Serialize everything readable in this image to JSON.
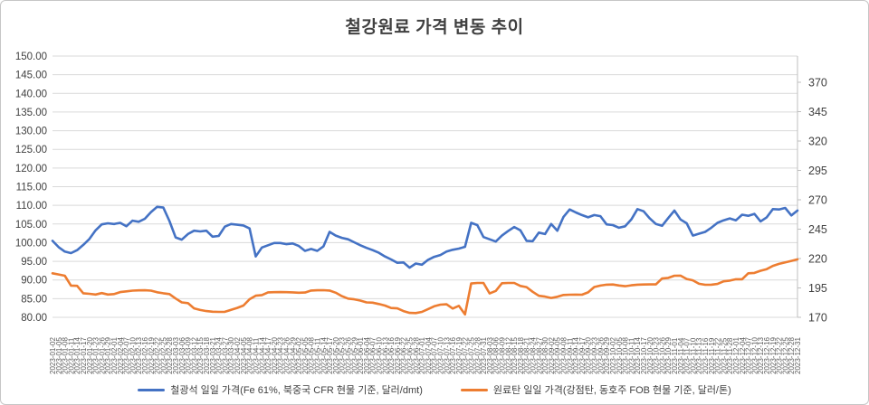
{
  "title": "철강원료 가격 변동 추이",
  "colors": {
    "iron_ore": "#4472C4",
    "coking_coal": "#ED7D31",
    "grid": "#D9D9D9",
    "axis_line": "#BFBFBF",
    "axis_text": "#404040",
    "title_text": "#404040"
  },
  "legend": {
    "iron_ore_label": "철광석 일일 가격(Fe 61%, 북중국 CFR 현물 기준, 달러/dmt)",
    "coking_coal_label": "원료탄 일일 가격(강점탄, 동호주 FOB 현물 기준, 달러/톤)"
  },
  "chart_data": {
    "type": "line",
    "title": "철강원료 가격 변동 추이",
    "grid": true,
    "legend_position": "bottom",
    "left_axis": {
      "min": 80,
      "max": 150,
      "step": 5,
      "ticks": [
        "150.00",
        "145.00",
        "140.00",
        "135.00",
        "130.00",
        "125.00",
        "120.00",
        "115.00",
        "110.00",
        "105.00",
        "100.00",
        "95.00",
        "90.00",
        "85.00",
        "80.00"
      ]
    },
    "right_axis": {
      "min": 170,
      "max": 370,
      "step": 25,
      "ticks": [
        "370",
        "345",
        "320",
        "295",
        "270",
        "245",
        "220",
        "195",
        "170"
      ]
    },
    "x": [
      "2023-01-02",
      "2023-01-05",
      "2023-01-08",
      "2023-01-11",
      "2023-01-14",
      "2023-01-17",
      "2023-01-20",
      "2023-01-23",
      "2023-01-26",
      "2023-01-29",
      "2023-02-01",
      "2023-02-04",
      "2023-02-07",
      "2023-02-10",
      "2023-02-13",
      "2023-02-16",
      "2023-02-19",
      "2023-02-22",
      "2023-02-25",
      "2023-02-28",
      "2023-03-03",
      "2023-03-06",
      "2023-03-09",
      "2023-03-12",
      "2023-03-15",
      "2023-03-18",
      "2023-03-21",
      "2023-03-24",
      "2023-03-27",
      "2023-03-30",
      "2023-04-02",
      "2023-04-05",
      "2023-04-08",
      "2023-04-11",
      "2023-04-14",
      "2023-04-17",
      "2023-04-20",
      "2023-04-23",
      "2023-04-26",
      "2023-04-29",
      "2023-05-02",
      "2023-05-05",
      "2023-05-08",
      "2023-05-11",
      "2023-05-14",
      "2023-05-17",
      "2023-05-20",
      "2023-05-23",
      "2023-05-26",
      "2023-05-29",
      "2023-06-01",
      "2023-06-04",
      "2023-06-07",
      "2023-06-10",
      "2023-06-13",
      "2023-06-16",
      "2023-06-19",
      "2023-06-22",
      "2023-06-25",
      "2023-06-28",
      "2023-07-01",
      "2023-07-04",
      "2023-07-07",
      "2023-07-10",
      "2023-07-13",
      "2023-07-16",
      "2023-07-19",
      "2023-07-22",
      "2023-07-25",
      "2023-07-28",
      "2023-07-31",
      "2023-08-03",
      "2023-08-06",
      "2023-08-09",
      "2023-08-12",
      "2023-08-15",
      "2023-08-18",
      "2023-08-21",
      "2023-08-24",
      "2023-08-27",
      "2023-08-30",
      "2023-09-02",
      "2023-09-05",
      "2023-09-08",
      "2023-09-11",
      "2023-09-14",
      "2023-09-17",
      "2023-09-20",
      "2023-09-23",
      "2023-09-26",
      "2023-09-29",
      "2023-10-02",
      "2023-10-05",
      "2023-10-08",
      "2023-10-11",
      "2023-10-14",
      "2023-10-17",
      "2023-10-20",
      "2023-10-23",
      "2023-10-26",
      "2023-10-29",
      "2023-11-01",
      "2023-11-04",
      "2023-11-07",
      "2023-11-10",
      "2023-11-13",
      "2023-11-16",
      "2023-11-19",
      "2023-11-22",
      "2023-11-25",
      "2023-11-28",
      "2023-12-01",
      "2023-12-04",
      "2023-12-07",
      "2023-12-10",
      "2023-12-13",
      "2023-12-16",
      "2023-12-19",
      "2023-12-22",
      "2023-12-25",
      "2023-12-28",
      "2023-12-31"
    ],
    "series": [
      {
        "name": "철광석 일일 가격(Fe 61%, 북중국 CFR 현물 기준, 달러/dmt)",
        "axis": "left",
        "color": "#4472C4",
        "values": [
          100.5,
          98.8,
          97.6,
          97.2,
          98.0,
          99.4,
          101.0,
          103.3,
          104.9,
          105.2,
          105.0,
          105.3,
          104.4,
          105.9,
          105.6,
          106.4,
          108.2,
          109.6,
          109.4,
          105.8,
          101.4,
          100.8,
          102.3,
          103.2,
          103.0,
          103.2,
          101.6,
          101.8,
          104.3,
          105.0,
          104.8,
          104.6,
          103.8,
          96.3,
          98.7,
          99.3,
          99.9,
          99.9,
          99.6,
          99.8,
          99.1,
          97.8,
          98.3,
          97.8,
          99.0,
          102.9,
          101.9,
          101.3,
          100.9,
          100.1,
          99.3,
          98.6,
          98.0,
          97.3,
          96.3,
          95.5,
          94.6,
          94.7,
          93.3,
          94.4,
          94.1,
          95.4,
          96.2,
          96.7,
          97.6,
          98.1,
          98.4,
          98.9,
          105.3,
          104.7,
          101.5,
          100.9,
          100.3,
          101.9,
          103.1,
          104.2,
          103.3,
          100.5,
          100.4,
          102.7,
          102.3,
          105.0,
          103.2,
          106.9,
          108.9,
          108.1,
          107.4,
          106.8,
          107.4,
          107.1,
          104.9,
          104.7,
          104.0,
          104.4,
          106.2,
          109.0,
          108.4,
          106.5,
          105.0,
          104.5,
          106.6,
          108.6,
          106.2,
          105.2,
          101.9,
          102.4,
          102.9,
          104.0,
          105.3,
          106.0,
          106.5,
          106.0,
          107.5,
          107.2,
          107.7,
          105.7,
          106.8,
          109.0,
          108.9,
          109.3,
          107.3,
          108.6
        ]
      },
      {
        "name": "원료탄 일일 가격(강점탄, 동호주 FOB 현물 기준, 달러/톤)",
        "axis": "right",
        "color": "#ED7D31",
        "values": [
          207.5,
          206.5,
          205.4,
          197.0,
          196.8,
          190.5,
          190.0,
          189.4,
          190.6,
          189.4,
          189.8,
          191.5,
          192.1,
          192.7,
          192.9,
          193.0,
          192.7,
          191.3,
          190.5,
          189.8,
          186.0,
          182.7,
          182.1,
          177.6,
          176.2,
          175.3,
          174.8,
          174.6,
          174.7,
          176.3,
          178.0,
          180.0,
          185.4,
          188.4,
          188.9,
          191.2,
          191.4,
          191.5,
          191.4,
          191.2,
          190.9,
          191.1,
          192.8,
          193.0,
          193.1,
          192.8,
          190.9,
          188.0,
          185.9,
          185.3,
          184.2,
          182.7,
          182.5,
          181.3,
          180.0,
          177.9,
          177.6,
          175.3,
          173.8,
          173.6,
          174.6,
          177.0,
          179.4,
          180.8,
          181.1,
          177.5,
          179.8,
          172.5,
          198.8,
          199.2,
          199.2,
          190.3,
          192.5,
          199.0,
          199.2,
          199.2,
          196.7,
          195.7,
          191.7,
          188.3,
          187.6,
          186.5,
          187.5,
          189.0,
          189.2,
          189.3,
          189.2,
          191.2,
          195.8,
          197.0,
          197.8,
          197.9,
          197.1,
          196.5,
          197.2,
          197.8,
          197.9,
          198.0,
          198.0,
          203.0,
          203.5,
          205.4,
          205.5,
          202.6,
          201.5,
          198.5,
          197.7,
          197.8,
          198.4,
          200.6,
          201.2,
          202.4,
          202.4,
          207.5,
          207.8,
          209.6,
          211.0,
          213.8,
          215.5,
          216.8,
          218.0,
          219.3
        ]
      }
    ]
  }
}
